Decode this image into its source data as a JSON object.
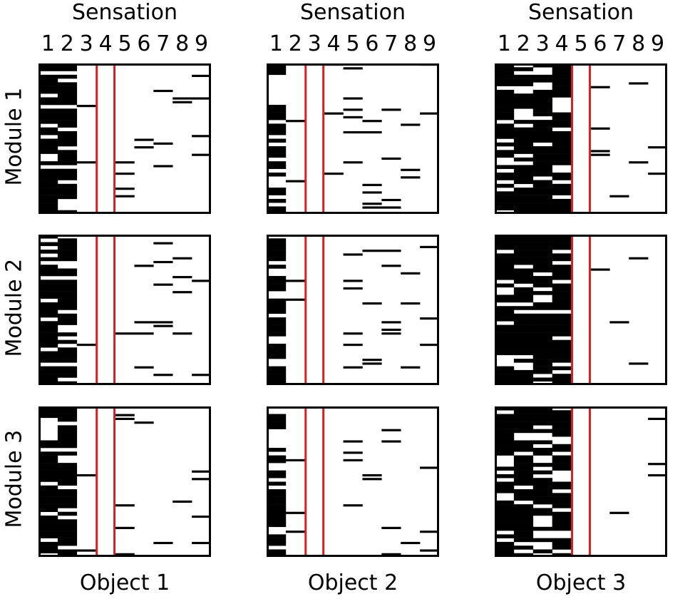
{
  "column_title": "Sensation",
  "sensation_ticks": [
    "1",
    "2",
    "3",
    "4",
    "5",
    "6",
    "7",
    "8",
    "9"
  ],
  "row_labels": [
    "Module 1",
    "Module 2",
    "Module 3"
  ],
  "object_labels": [
    "Object 1",
    "Object 2",
    "Object 3"
  ],
  "colors": {
    "active": "#000000",
    "highlight": "#d42020",
    "background": "#ffffff"
  },
  "chart_data": {
    "type": "heatmap",
    "x_axis": {
      "label": "Sensation",
      "categories": [
        1,
        2,
        3,
        4,
        5,
        6,
        7,
        8,
        9
      ]
    },
    "rows": [
      "Module 1",
      "Module 2",
      "Module 3"
    ],
    "columns": [
      "Object 1",
      "Object 2",
      "Object 3"
    ],
    "highlighted_sensation": [
      4,
      3,
      5
    ],
    "cells_per_panel": 40,
    "panels": [
      {
        "object": "Object 1",
        "module": "Module 1",
        "dense_sensations": [
          1,
          2
        ],
        "sparse_density": 0.06,
        "seed": 11
      },
      {
        "object": "Object 2",
        "module": "Module 1",
        "dense_sensations": [
          1
        ],
        "sparse_density": 0.06,
        "seed": 21
      },
      {
        "object": "Object 3",
        "module": "Module 1",
        "dense_sensations": [
          1,
          2,
          3,
          4
        ],
        "sparse_density": 0.05,
        "seed": 31
      },
      {
        "object": "Object 1",
        "module": "Module 2",
        "dense_sensations": [
          1,
          2
        ],
        "sparse_density": 0.06,
        "seed": 12
      },
      {
        "object": "Object 2",
        "module": "Module 2",
        "dense_sensations": [
          1
        ],
        "sparse_density": 0.06,
        "seed": 22
      },
      {
        "object": "Object 3",
        "module": "Module 2",
        "dense_sensations": [
          1,
          2,
          3,
          4
        ],
        "sparse_density": 0.04,
        "seed": 32
      },
      {
        "object": "Object 1",
        "module": "Module 3",
        "dense_sensations": [
          1,
          2
        ],
        "sparse_density": 0.06,
        "seed": 13
      },
      {
        "object": "Object 2",
        "module": "Module 3",
        "dense_sensations": [
          1
        ],
        "sparse_density": 0.06,
        "seed": 23
      },
      {
        "object": "Object 3",
        "module": "Module 3",
        "dense_sensations": [
          1,
          2,
          3,
          4
        ],
        "sparse_density": 0.05,
        "seed": 33
      }
    ]
  }
}
